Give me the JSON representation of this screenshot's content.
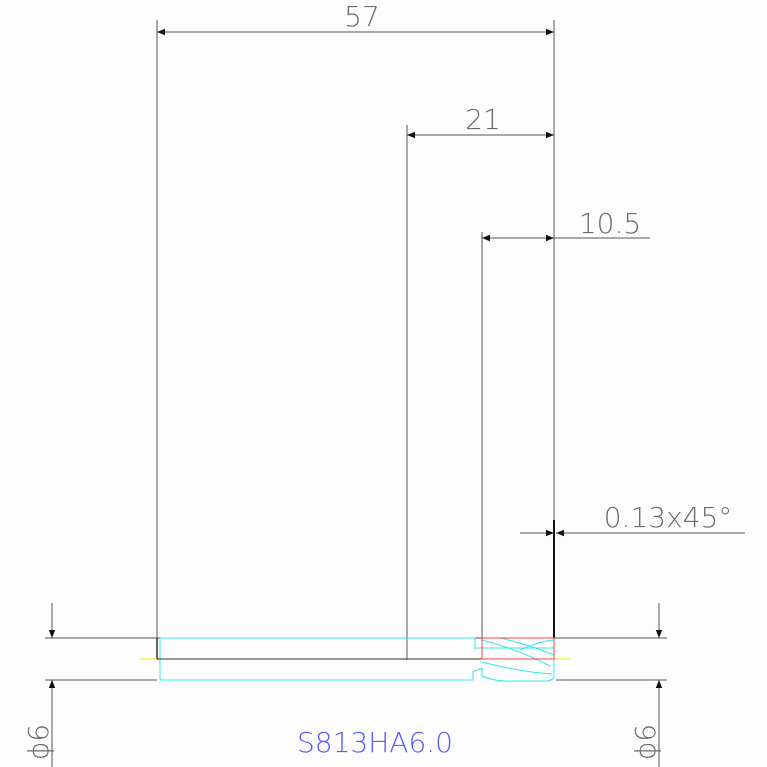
{
  "dimensions": {
    "overall_length": "57",
    "flute_length": "21",
    "cutting_length": "10.5",
    "chamfer": "0.13x45°",
    "diameter_left": "ϕ6",
    "diameter_right": "ϕ6"
  },
  "part_label": "S813HA6.0",
  "colors": {
    "dimension": "#555555",
    "body": "#33e6f0",
    "cutting_edge": "#ff4040",
    "label": "#5a5aff",
    "centerline": "#f0f000"
  }
}
